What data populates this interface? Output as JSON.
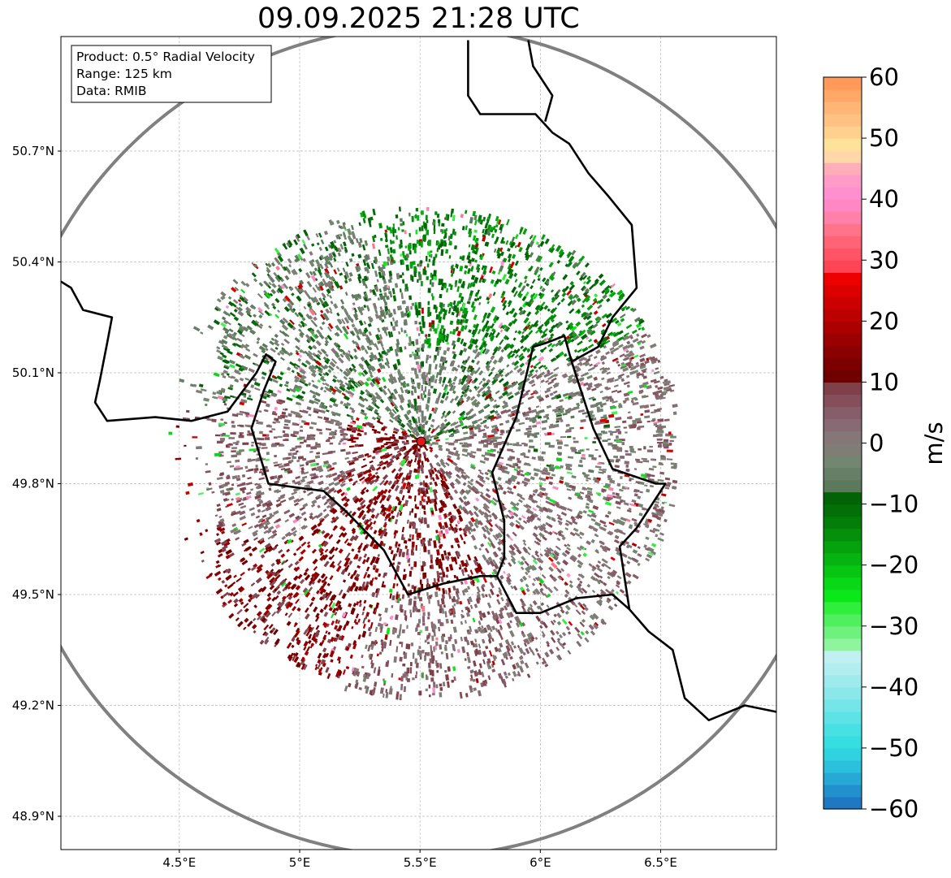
{
  "title": "09.09.2025 21:28 UTC",
  "info_box": {
    "lines": [
      "Product: 0.5° Radial Velocity",
      "Range: 125 km",
      "Data: RMIB"
    ]
  },
  "map": {
    "lon_range": [
      4.0,
      7.0
    ],
    "lat_range": [
      48.8,
      51.0
    ],
    "x_ticks": [
      {
        "value": 4.5,
        "label": "4.5°E"
      },
      {
        "value": 5.0,
        "label": "5°E"
      },
      {
        "value": 5.5,
        "label": "5.5°E"
      },
      {
        "value": 6.0,
        "label": "6°E"
      },
      {
        "value": 6.5,
        "label": "6.5°E"
      }
    ],
    "y_ticks": [
      {
        "value": 48.9,
        "label": "48.9°N"
      },
      {
        "value": 49.2,
        "label": "49.2°N"
      },
      {
        "value": 49.5,
        "label": "49.5°N"
      },
      {
        "value": 49.8,
        "label": "49.8°N"
      },
      {
        "value": 50.1,
        "label": "50.1°N"
      },
      {
        "value": 50.4,
        "label": "50.4°N"
      },
      {
        "value": 50.7,
        "label": "50.7°N"
      }
    ],
    "radar_site": {
      "lon": 5.505,
      "lat": 49.914
    },
    "range_km": 125,
    "borders": [
      [
        [
          4.0,
          50.35
        ],
        [
          4.05,
          50.33
        ],
        [
          4.1,
          50.27
        ],
        [
          4.22,
          50.25
        ],
        [
          4.2,
          50.18
        ],
        [
          4.17,
          50.08
        ],
        [
          4.15,
          50.02
        ],
        [
          4.2,
          49.97
        ],
        [
          4.4,
          49.98
        ],
        [
          4.55,
          49.97
        ],
        [
          4.7,
          49.995
        ],
        [
          4.82,
          50.1
        ],
        [
          4.86,
          50.15
        ],
        [
          4.9,
          50.13
        ],
        [
          4.85,
          50.05
        ],
        [
          4.8,
          49.95
        ],
        [
          4.87,
          49.8
        ],
        [
          5.1,
          49.78
        ],
        [
          5.2,
          49.72
        ],
        [
          5.35,
          49.62
        ],
        [
          5.45,
          49.5
        ],
        [
          5.6,
          49.53
        ],
        [
          5.75,
          49.55
        ],
        [
          5.82,
          49.55
        ],
        [
          5.9,
          49.45
        ],
        [
          6.0,
          49.45
        ],
        [
          6.15,
          49.49
        ],
        [
          6.3,
          49.5
        ],
        [
          6.37,
          49.46
        ],
        [
          6.45,
          49.4
        ],
        [
          6.55,
          49.35
        ],
        [
          6.6,
          49.22
        ],
        [
          6.7,
          49.16
        ],
        [
          6.85,
          49.2
        ],
        [
          7.0,
          49.18
        ]
      ],
      [
        [
          6.13,
          50.13
        ],
        [
          6.1,
          50.2
        ],
        [
          6.02,
          50.18
        ],
        [
          5.97,
          50.17
        ],
        [
          5.9,
          49.98
        ],
        [
          5.8,
          49.83
        ],
        [
          5.85,
          49.7
        ],
        [
          5.85,
          49.6
        ],
        [
          5.82,
          49.55
        ]
      ],
      [
        [
          6.13,
          50.13
        ],
        [
          6.17,
          50.05
        ],
        [
          6.22,
          49.95
        ],
        [
          6.3,
          49.84
        ],
        [
          6.48,
          49.8
        ],
        [
          6.52,
          49.8
        ],
        [
          6.4,
          49.68
        ],
        [
          6.33,
          49.63
        ],
        [
          6.37,
          49.46
        ]
      ],
      [
        [
          6.13,
          50.13
        ],
        [
          6.24,
          50.17
        ],
        [
          6.3,
          50.25
        ],
        [
          6.4,
          50.33
        ],
        [
          6.38,
          50.5
        ],
        [
          6.28,
          50.58
        ],
        [
          6.2,
          50.64
        ],
        [
          6.12,
          50.72
        ],
        [
          6.05,
          50.75
        ],
        [
          5.98,
          50.8
        ],
        [
          5.75,
          50.8
        ],
        [
          5.7,
          50.85
        ],
        [
          5.7,
          51.0
        ]
      ],
      [
        [
          5.95,
          51.0
        ],
        [
          5.97,
          50.93
        ],
        [
          6.05,
          50.85
        ],
        [
          6.02,
          50.78
        ]
      ]
    ]
  },
  "colorbar": {
    "label": "m/s",
    "min": -60,
    "max": 60,
    "ticks": [
      {
        "value": 60,
        "label": "60"
      },
      {
        "value": 50,
        "label": "50"
      },
      {
        "value": 40,
        "label": "40"
      },
      {
        "value": 30,
        "label": "30"
      },
      {
        "value": 20,
        "label": "20"
      },
      {
        "value": 10,
        "label": "10"
      },
      {
        "value": 0,
        "label": "0"
      },
      {
        "value": -10,
        "label": "−10"
      },
      {
        "value": -20,
        "label": "−20"
      },
      {
        "value": -30,
        "label": "−30"
      },
      {
        "value": -40,
        "label": "−40"
      },
      {
        "value": -50,
        "label": "−50"
      },
      {
        "value": -60,
        "label": "−60"
      }
    ],
    "colors": [
      {
        "from": -60,
        "to": -58,
        "color": "#1f78c2"
      },
      {
        "from": -58,
        "to": -56,
        "color": "#2290cc"
      },
      {
        "from": -56,
        "to": -54,
        "color": "#26aad5"
      },
      {
        "from": -54,
        "to": -52,
        "color": "#2bc0dc"
      },
      {
        "from": -52,
        "to": -50,
        "color": "#2fd3e0"
      },
      {
        "from": -50,
        "to": -48,
        "color": "#36dde1"
      },
      {
        "from": -48,
        "to": -46,
        "color": "#47e0e3"
      },
      {
        "from": -46,
        "to": -44,
        "color": "#5de3e6"
      },
      {
        "from": -44,
        "to": -42,
        "color": "#74e5e8"
      },
      {
        "from": -42,
        "to": -40,
        "color": "#8ae8ea"
      },
      {
        "from": -40,
        "to": -38,
        "color": "#9feaec"
      },
      {
        "from": -38,
        "to": -36,
        "color": "#b2edef"
      },
      {
        "from": -36,
        "to": -34,
        "color": "#c1f0f1"
      },
      {
        "from": -34,
        "to": -32,
        "color": "#8ef59c"
      },
      {
        "from": -32,
        "to": -30,
        "color": "#6ff27d"
      },
      {
        "from": -30,
        "to": -28,
        "color": "#50ef5e"
      },
      {
        "from": -28,
        "to": -26,
        "color": "#2fee3c"
      },
      {
        "from": -26,
        "to": -24,
        "color": "#0be81a"
      },
      {
        "from": -24,
        "to": -22,
        "color": "#08d816"
      },
      {
        "from": -22,
        "to": -20,
        "color": "#07c613"
      },
      {
        "from": -20,
        "to": -18,
        "color": "#06b411"
      },
      {
        "from": -18,
        "to": -16,
        "color": "#05a20e"
      },
      {
        "from": -16,
        "to": -14,
        "color": "#04900b"
      },
      {
        "from": -14,
        "to": -12,
        "color": "#037f09"
      },
      {
        "from": -12,
        "to": -10,
        "color": "#026f07"
      },
      {
        "from": -10,
        "to": -8,
        "color": "#016305"
      },
      {
        "from": -8,
        "to": -6,
        "color": "#5a7a5a"
      },
      {
        "from": -6,
        "to": -4,
        "color": "#667f66"
      },
      {
        "from": -4,
        "to": -2,
        "color": "#728670"
      },
      {
        "from": -2,
        "to": 0,
        "color": "#807c76"
      },
      {
        "from": 0,
        "to": 2,
        "color": "#857777"
      },
      {
        "from": 2,
        "to": 4,
        "color": "#886a75"
      },
      {
        "from": 4,
        "to": 6,
        "color": "#865e69"
      },
      {
        "from": 6,
        "to": 8,
        "color": "#844f5b"
      },
      {
        "from": 8,
        "to": 10,
        "color": "#7f4049"
      },
      {
        "from": 10,
        "to": 12,
        "color": "#6f0000"
      },
      {
        "from": 12,
        "to": 14,
        "color": "#7d0000"
      },
      {
        "from": 14,
        "to": 16,
        "color": "#8b0000"
      },
      {
        "from": 16,
        "to": 18,
        "color": "#9b0000"
      },
      {
        "from": 18,
        "to": 20,
        "color": "#ab0000"
      },
      {
        "from": 20,
        "to": 22,
        "color": "#bc0000"
      },
      {
        "from": 22,
        "to": 24,
        "color": "#cc0000"
      },
      {
        "from": 24,
        "to": 26,
        "color": "#dc0000"
      },
      {
        "from": 26,
        "to": 28,
        "color": "#ee0000"
      },
      {
        "from": 28,
        "to": 30,
        "color": "#ff4455"
      },
      {
        "from": 30,
        "to": 32,
        "color": "#ff5466"
      },
      {
        "from": 32,
        "to": 34,
        "color": "#ff6476"
      },
      {
        "from": 34,
        "to": 36,
        "color": "#ff7488"
      },
      {
        "from": 36,
        "to": 38,
        "color": "#ff80a8"
      },
      {
        "from": 38,
        "to": 40,
        "color": "#ff88c4"
      },
      {
        "from": 40,
        "to": 42,
        "color": "#ff90d0"
      },
      {
        "from": 42,
        "to": 44,
        "color": "#ff9bc8"
      },
      {
        "from": 44,
        "to": 46,
        "color": "#ffadb8"
      },
      {
        "from": 46,
        "to": 48,
        "color": "#ffd7a8"
      },
      {
        "from": 48,
        "to": 50,
        "color": "#ffe299"
      },
      {
        "from": 50,
        "to": 52,
        "color": "#ffd08e"
      },
      {
        "from": 52,
        "to": 54,
        "color": "#ffc282"
      },
      {
        "from": 54,
        "to": 56,
        "color": "#ffb676"
      },
      {
        "from": 56,
        "to": 58,
        "color": "#ffa868"
      },
      {
        "from": 58,
        "to": 60,
        "color": "#ff9a5a"
      }
    ]
  }
}
